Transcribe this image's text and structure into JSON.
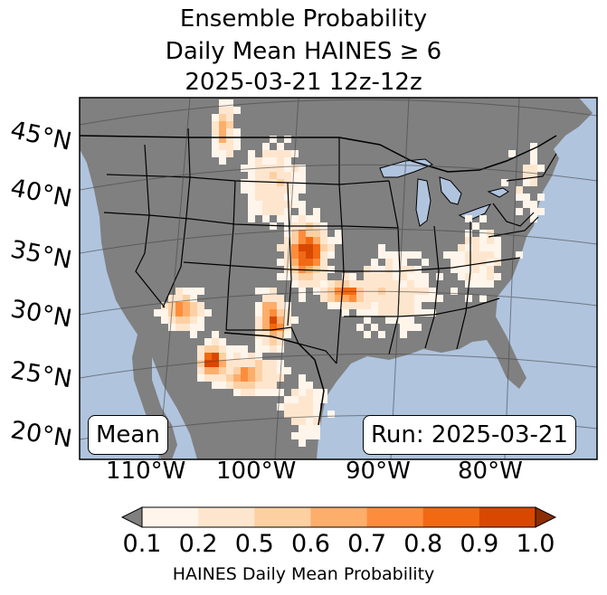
{
  "title": {
    "line1": "Ensemble Probability",
    "line2": "Daily Mean HAINES ≥ 6",
    "line3": "2025-03-21 12z-12z"
  },
  "latitude_labels": [
    "45°N",
    "40°N",
    "35°N",
    "30°N",
    "25°N",
    "20°N"
  ],
  "longitude_labels": [
    "110°W",
    "100°W",
    "90°W",
    "80°W"
  ],
  "mean_box": "Mean",
  "run_box": "Run: 2025-03-21",
  "colorbar": {
    "label": "HAINES Daily Mean Probability",
    "ticks": [
      "0.1",
      "0.2",
      "0.5",
      "0.6",
      "0.7",
      "0.8",
      "0.9",
      "1.0"
    ],
    "colors": [
      "#fff5eb",
      "#fee6ce",
      "#fdd0a2",
      "#fdae6b",
      "#fd8d3c",
      "#f16913",
      "#d94801",
      "#8c2d04"
    ],
    "under_color": "#808080"
  },
  "map_colors": {
    "ocean": "#b0c4de",
    "land_masked": "#808080",
    "lakes": "#b0c4de",
    "grid": "#444444"
  }
}
